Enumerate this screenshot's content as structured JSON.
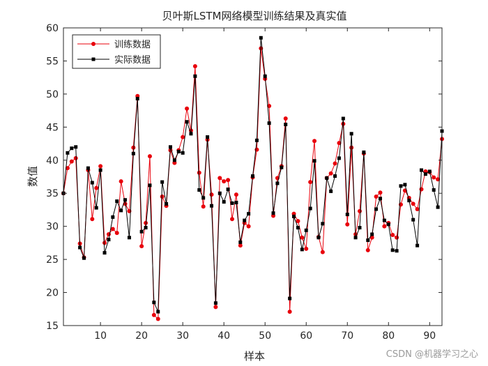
{
  "chart_data": {
    "type": "line",
    "title": "贝叶斯LSTM网络模型训练结果及真实值",
    "xlabel": "样本",
    "ylabel": "数值",
    "xlim": [
      1,
      93
    ],
    "ylim": [
      15,
      60
    ],
    "xticks": [
      10,
      20,
      30,
      40,
      50,
      60,
      70,
      80,
      90
    ],
    "yticks": [
      15,
      20,
      25,
      30,
      35,
      40,
      45,
      50,
      55,
      60
    ],
    "legend_position": "top-left",
    "series": [
      {
        "name": "训练数据",
        "color": "#e8000b",
        "marker": "circle",
        "values": [
          35,
          38.8,
          39.8,
          40.3,
          27.4,
          25.3,
          38.5,
          31.1,
          35.8,
          39.1,
          27.5,
          28.8,
          29.6,
          29,
          36.8,
          33.4,
          32.3,
          41.9,
          49.7,
          27,
          30.5,
          40.6,
          16.6,
          16,
          34.5,
          33.1,
          41.5,
          39.6,
          41.5,
          43.5,
          47.8,
          44.5,
          54.2,
          38.1,
          33,
          43.1,
          34.8,
          17.8,
          37.3,
          36.8,
          37,
          31.1,
          34.8,
          27.1,
          30.5,
          30,
          37.4,
          41.6,
          56.9,
          52.3,
          48.2,
          31.6,
          37.3,
          39.1,
          46.3,
          17.1,
          31.9,
          30.8,
          28.3,
          26.6,
          36.7,
          42.9,
          28.4,
          26.1,
          37.3,
          38,
          39.5,
          42.6,
          45.5,
          30.3,
          41.9,
          28.8,
          32.3,
          41,
          26.4,
          28.3,
          34.5,
          35.1,
          30,
          30.5,
          28.7,
          28.3,
          33.3,
          35.4,
          34.3,
          33.4,
          32.6,
          35.6,
          38.3,
          38.2,
          37.4,
          37.1,
          43.2
        ]
      },
      {
        "name": "实际数据",
        "color": "#000000",
        "marker": "square",
        "values": [
          35,
          41.1,
          41.8,
          42,
          26.8,
          25.2,
          38.8,
          36.6,
          32.8,
          38.5,
          26,
          28,
          31.4,
          33.8,
          32.4,
          34,
          28.3,
          41,
          49.3,
          29.2,
          29.8,
          36.2,
          18.5,
          17.1,
          36.7,
          33.4,
          42,
          40,
          41.3,
          41.1,
          45.8,
          44,
          52.7,
          35.5,
          34.3,
          43.5,
          33.1,
          18.4,
          35,
          33.7,
          35.6,
          33.5,
          33.6,
          27.6,
          30.9,
          31.9,
          37.6,
          43,
          58.5,
          52.7,
          45.6,
          32,
          36.5,
          38.9,
          45.4,
          19.1,
          31.5,
          29.8,
          26.5,
          29.4,
          32.7,
          39.9,
          28.3,
          30.4,
          37.3,
          35.3,
          37.6,
          40.3,
          46.3,
          31.8,
          44,
          28.3,
          29.8,
          41.2,
          27.9,
          28.8,
          32.6,
          34.2,
          30.9,
          30.3,
          26.4,
          26.3,
          36.1,
          36.3,
          33.9,
          31,
          27.1,
          38.5,
          37.9,
          38.3,
          35.5,
          32.9,
          44.4
        ]
      }
    ]
  },
  "watermark": "CSDN @机器学习之心"
}
